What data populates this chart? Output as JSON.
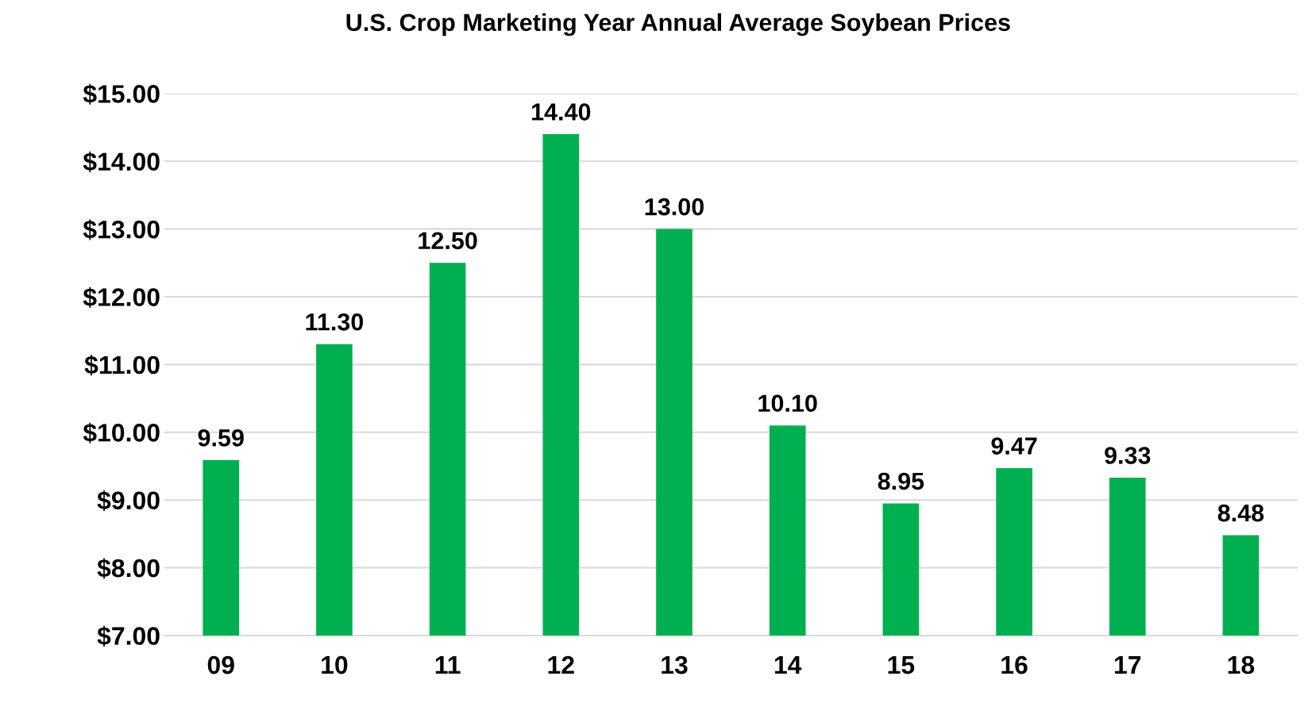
{
  "chart_data": {
    "type": "bar",
    "title": "U.S. Crop Marketing Year Annual Average Soybean Prices",
    "categories": [
      "09",
      "10",
      "11",
      "12",
      "13",
      "14",
      "15",
      "16",
      "17",
      "18"
    ],
    "values": [
      9.59,
      11.3,
      12.5,
      14.4,
      13.0,
      10.1,
      8.95,
      9.47,
      9.33,
      8.48
    ],
    "value_labels": [
      "9.59",
      "11.30",
      "12.50",
      "14.40",
      "13.00",
      "10.10",
      "8.95",
      "9.47",
      "9.33",
      "8.48"
    ],
    "color": "#00b050",
    "ylim": [
      7,
      15
    ],
    "yticks": [
      {
        "value": 7,
        "label": "$7.00"
      },
      {
        "value": 8,
        "label": "$8.00"
      },
      {
        "value": 9,
        "label": "$9.00"
      },
      {
        "value": 10,
        "label": "$10.00"
      },
      {
        "value": 11,
        "label": "$11.00"
      },
      {
        "value": 12,
        "label": "$12.00"
      },
      {
        "value": 13,
        "label": "$13.00"
      },
      {
        "value": 14,
        "label": "$14.00"
      },
      {
        "value": 15,
        "label": "$15.00"
      }
    ],
    "grid": "y"
  }
}
